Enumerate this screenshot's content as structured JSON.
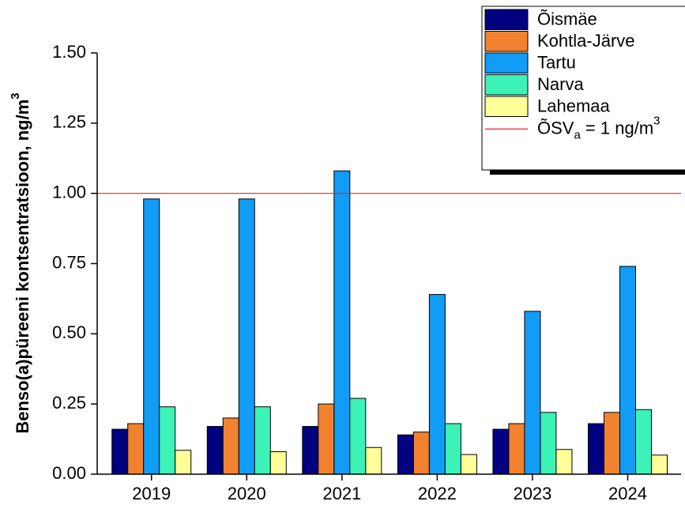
{
  "chart_data": {
    "type": "bar",
    "y_label_parts": [
      "Benso(a)püreeni kontsentratsioon, ng/m",
      "3"
    ],
    "categories": [
      "2019",
      "2020",
      "2021",
      "2022",
      "2023",
      "2024"
    ],
    "series": [
      {
        "name": "Õismäe",
        "color": "#000080",
        "values": [
          0.16,
          0.17,
          0.17,
          0.14,
          0.16,
          0.18
        ]
      },
      {
        "name": "Kohtla-Järve",
        "color": "#f28230",
        "values": [
          0.18,
          0.2,
          0.25,
          0.15,
          0.18,
          0.22
        ]
      },
      {
        "name": "Tartu",
        "color": "#119cf5",
        "values": [
          0.98,
          0.98,
          1.08,
          0.64,
          0.58,
          0.74
        ]
      },
      {
        "name": "Narva",
        "color": "#3df2b6",
        "values": [
          0.24,
          0.24,
          0.27,
          0.18,
          0.22,
          0.23
        ]
      },
      {
        "name": "Lahemaa",
        "color": "#ffff99",
        "values": [
          0.085,
          0.08,
          0.095,
          0.07,
          0.088,
          0.068
        ]
      }
    ],
    "reference_line": {
      "value": 1,
      "color": "#e8231e",
      "label_parts": [
        "ÕSV",
        "a",
        " = 1 ng/m",
        "3"
      ]
    },
    "ylim": [
      0,
      1.5
    ],
    "yticks": [
      {
        "value": 0,
        "label": "0.00"
      },
      {
        "value": 0.25,
        "label": "0.25"
      },
      {
        "value": 0.5,
        "label": "0.50"
      },
      {
        "value": 0.75,
        "label": "0.75"
      },
      {
        "value": 1,
        "label": "1.00"
      },
      {
        "value": 1.25,
        "label": "1.25"
      },
      {
        "value": 1.5,
        "label": "1.50"
      }
    ],
    "legend": "top-right"
  }
}
